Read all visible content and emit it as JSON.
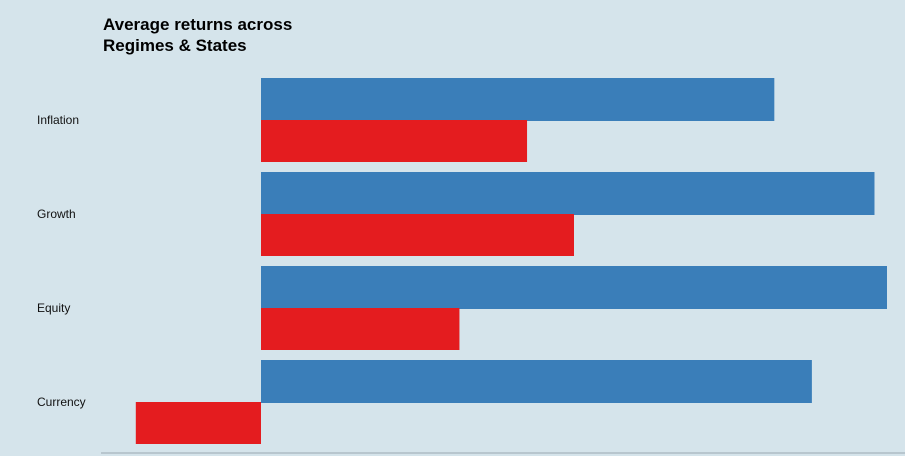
{
  "chart_data": {
    "type": "bar",
    "orientation": "horizontal",
    "title_lines": [
      "Average returns across",
      "Regimes & States"
    ],
    "categories": [
      "Inflation",
      "Growth",
      "Equity",
      "Currency"
    ],
    "series": [
      {
        "values": [
          0.82,
          0.98,
          1.0,
          0.88
        ],
        "color": "#3a7eb9"
      },
      {
        "values": [
          0.425,
          0.5,
          0.317,
          -0.2
        ],
        "color": "#e41c1f"
      }
    ],
    "xlabel": "",
    "ylabel": "",
    "xlim": [
      -0.2,
      1.0
    ],
    "grid": false,
    "legend": "none",
    "background": "#d5e4eb",
    "axis_color": "#9aa8b0"
  }
}
